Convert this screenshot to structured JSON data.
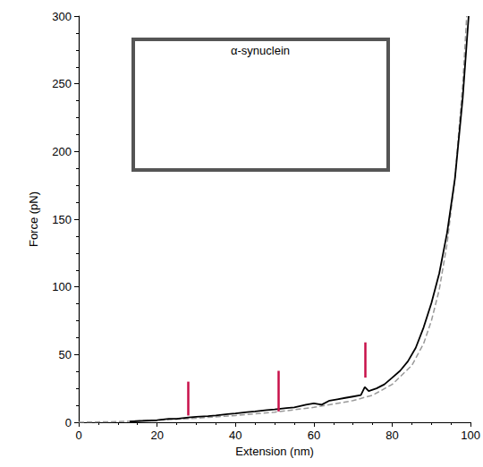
{
  "chart_data": {
    "type": "line",
    "x_label": "Extension (nm)",
    "y_label": "Force (pN)",
    "inset_title": "α-synuclein",
    "xlim": [
      0,
      100
    ],
    "xticks": [
      0,
      20,
      40,
      60,
      80,
      100
    ],
    "ylim": [
      0,
      300
    ],
    "yticks": [
      0,
      50,
      100,
      150,
      200,
      250,
      300
    ],
    "grid": false,
    "series": [
      {
        "color": "#000000",
        "line_style": "solid",
        "x": [
          13,
          16,
          20,
          23,
          25,
          28,
          30,
          33,
          35,
          38,
          40,
          43,
          45,
          48,
          50,
          53,
          55,
          58,
          60,
          62,
          64,
          66,
          68,
          70,
          72,
          73,
          74,
          76,
          78,
          80,
          82,
          84,
          86,
          88,
          90,
          92,
          94,
          96,
          98,
          99,
          99.5
        ],
        "values": [
          0.5,
          1,
          1.5,
          2.5,
          2.5,
          3.5,
          4,
          4.5,
          5,
          6,
          6.5,
          7.5,
          8,
          9,
          9.5,
          10.5,
          11,
          13,
          14,
          13,
          16,
          17,
          18,
          19,
          20,
          26,
          23,
          25,
          28,
          33,
          38,
          45,
          55,
          70,
          88,
          110,
          140,
          180,
          240,
          280,
          300
        ]
      },
      {
        "color": "#999999",
        "line_style": "dashed",
        "x": [
          0,
          10,
          20,
          30,
          40,
          50,
          60,
          70,
          75,
          80,
          85,
          88,
          90,
          92,
          94,
          96,
          98,
          99
        ],
        "values": [
          0,
          0.5,
          1.5,
          3,
          5,
          7.5,
          11,
          16,
          20,
          28,
          42,
          58,
          75,
          98,
          132,
          180,
          250,
          300
        ]
      }
    ],
    "arrows": [
      {
        "x": 28,
        "y_start": 30,
        "y_end": 5,
        "color": "#c8104a"
      },
      {
        "x": 51,
        "y_start": 38,
        "y_end": 8,
        "color": "#c8104a"
      },
      {
        "x": 73,
        "y_start": 59,
        "y_end": 33,
        "color": "#c8104a"
      }
    ]
  }
}
